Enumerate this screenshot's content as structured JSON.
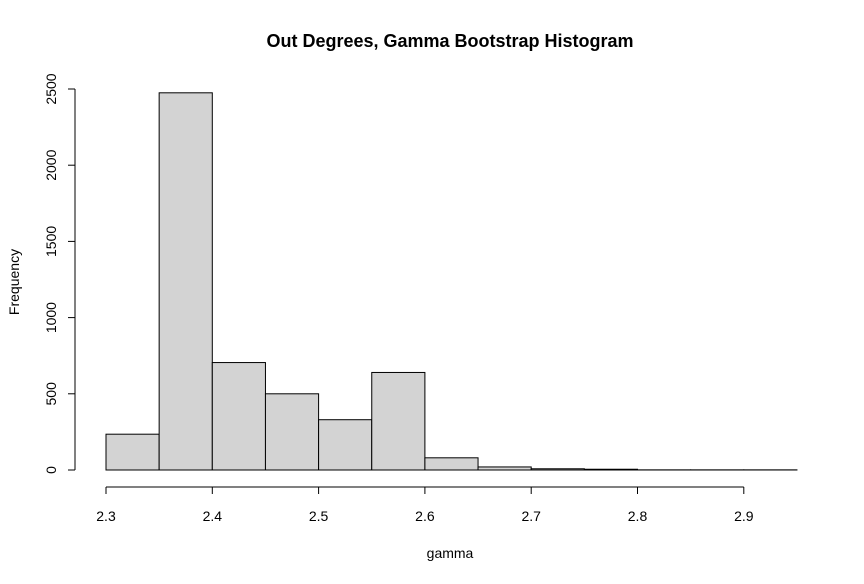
{
  "chart_data": {
    "type": "bar",
    "title": "Out Degrees, Gamma Bootstrap Histogram",
    "xlabel": "gamma",
    "ylabel": "Frequency",
    "bins": [
      {
        "from": 2.3,
        "to": 2.35,
        "count": 235
      },
      {
        "from": 2.35,
        "to": 2.4,
        "count": 2475
      },
      {
        "from": 2.4,
        "to": 2.45,
        "count": 705
      },
      {
        "from": 2.45,
        "to": 2.5,
        "count": 500
      },
      {
        "from": 2.5,
        "to": 2.55,
        "count": 330
      },
      {
        "from": 2.55,
        "to": 2.6,
        "count": 640
      },
      {
        "from": 2.6,
        "to": 2.65,
        "count": 80
      },
      {
        "from": 2.65,
        "to": 2.7,
        "count": 20
      },
      {
        "from": 2.7,
        "to": 2.75,
        "count": 8
      },
      {
        "from": 2.75,
        "to": 2.8,
        "count": 5
      },
      {
        "from": 2.8,
        "to": 2.85,
        "count": 1
      },
      {
        "from": 2.85,
        "to": 2.9,
        "count": 1
      },
      {
        "from": 2.9,
        "to": 2.95,
        "count": 1
      }
    ],
    "x_ticks": [
      "2.3",
      "2.4",
      "2.5",
      "2.6",
      "2.7",
      "2.8",
      "2.9"
    ],
    "y_ticks": [
      "0",
      "500",
      "1000",
      "1500",
      "2000",
      "2500"
    ],
    "xlim": [
      2.3,
      2.95
    ],
    "ylim": [
      0,
      2500
    ],
    "grid": false,
    "legend": "none"
  }
}
